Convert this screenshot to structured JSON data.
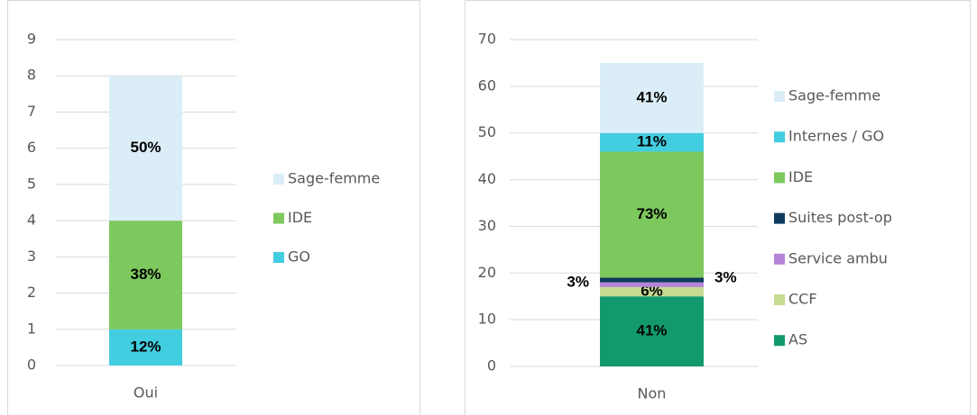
{
  "chart_data": [
    {
      "type": "stacked_bar",
      "categories": [
        "Oui"
      ],
      "ylim": [
        0,
        9
      ],
      "yticks": [
        0,
        1,
        2,
        3,
        4,
        5,
        6,
        7,
        8,
        9
      ],
      "grid": true,
      "legend": "right",
      "series": [
        {
          "name": "GO",
          "color": "#43cde0",
          "values": [
            1
          ],
          "labels": [
            "12%"
          ]
        },
        {
          "name": "IDE",
          "color": "#7dc95e",
          "values": [
            3
          ],
          "labels": [
            "38%"
          ]
        },
        {
          "name": "Sage-femme",
          "color": "#dbeef7",
          "values": [
            4
          ],
          "labels": [
            "50%"
          ]
        }
      ]
    },
    {
      "type": "stacked_bar",
      "categories": [
        "Non"
      ],
      "ylim": [
        0,
        70
      ],
      "yticks": [
        0,
        10,
        20,
        30,
        40,
        50,
        60,
        70
      ],
      "grid": true,
      "legend": "right",
      "series": [
        {
          "name": "AS",
          "color": "#12996e",
          "values": [
            15
          ],
          "labels": [
            "41%"
          ]
        },
        {
          "name": "CCF",
          "color": "#c6db91",
          "values": [
            2
          ],
          "labels": [
            "6%"
          ]
        },
        {
          "name": "Service ambu",
          "color": "#b784d8",
          "values": [
            1
          ],
          "labels": [
            "3%"
          ]
        },
        {
          "name": "Suites post-op",
          "color": "#0e3b5e",
          "values": [
            1
          ],
          "labels": [
            "3%"
          ]
        },
        {
          "name": "IDE",
          "color": "#7dc95e",
          "values": [
            27
          ],
          "labels": [
            "73%"
          ]
        },
        {
          "name": "Internes / GO",
          "color": "#43cde0",
          "values": [
            4
          ],
          "labels": [
            "11%"
          ]
        },
        {
          "name": "Sage-femme",
          "color": "#dbeef7",
          "values": [
            15
          ],
          "labels": [
            "41%"
          ]
        }
      ]
    }
  ]
}
